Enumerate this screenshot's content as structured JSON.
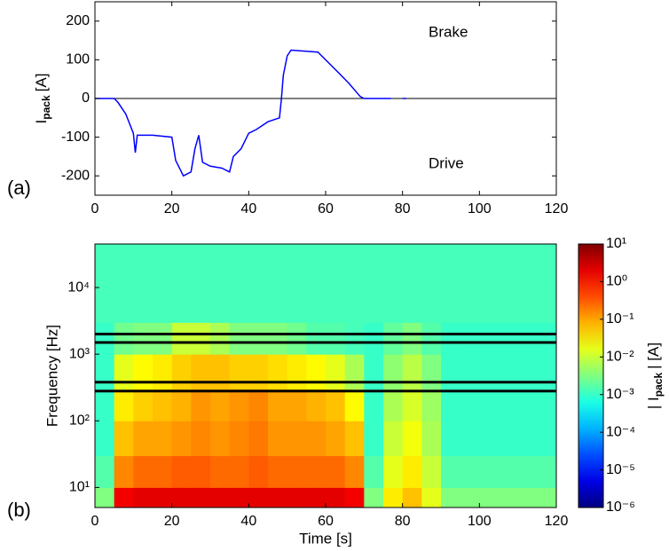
{
  "chart_data": [
    {
      "type": "line",
      "panel_label": "(a)",
      "ylabel": [
        "I",
        "pack",
        "[A]"
      ],
      "annotations": [
        "Brake",
        "Drive"
      ],
      "xlim": [
        0,
        120
      ],
      "xticks": [
        0,
        20,
        40,
        60,
        80,
        100,
        120
      ],
      "ylim": [
        -250,
        250
      ],
      "yticks": [
        -200,
        -100,
        0,
        100,
        200
      ],
      "hline": 0,
      "series": [
        {
          "color": "#0000ff",
          "x": [
            0,
            5,
            6,
            8,
            10,
            10.5,
            11,
            15,
            20,
            21,
            23,
            25,
            26,
            27,
            28,
            30,
            33,
            35,
            36,
            38,
            40,
            42,
            45,
            48,
            48.5,
            49,
            50,
            51,
            58,
            62,
            66,
            69,
            70,
            77,
            77.3,
            80,
            81,
            81.5,
            88
          ],
          "values": [
            0,
            0,
            -10,
            -40,
            -90,
            -140,
            -95,
            -95,
            -100,
            -160,
            -200,
            -190,
            -130,
            -95,
            -165,
            -175,
            -180,
            -190,
            -150,
            -130,
            -90,
            -80,
            -60,
            -50,
            0,
            60,
            110,
            125,
            120,
            80,
            40,
            5,
            0,
            0,
            null,
            0,
            0,
            null,
            0
          ]
        }
      ]
    },
    {
      "type": "heatmap",
      "panel_label": "(b)",
      "xlabel": "Time [s]",
      "ylabel": "Frequency [Hz]",
      "clabel": [
        "| I",
        "pack",
        "| [A]"
      ],
      "colormap": "jet",
      "yscale": "log",
      "xlim": [
        0,
        120
      ],
      "xticks": [
        0,
        20,
        40,
        60,
        80,
        100,
        120
      ],
      "ylim": [
        5,
        45000
      ],
      "yticks": [
        {
          "value": 10,
          "label": "10¹"
        },
        {
          "value": 100,
          "label": "10²"
        },
        {
          "value": 1000,
          "label": "10³"
        },
        {
          "value": 10000,
          "label": "10⁴"
        }
      ],
      "clim": [
        1e-06,
        10
      ],
      "cticks": [
        {
          "value": 1e-06,
          "label": "10⁻⁶"
        },
        {
          "value": 1e-05,
          "label": "10⁻⁵"
        },
        {
          "value": 0.0001,
          "label": "10⁻⁴"
        },
        {
          "value": 0.001,
          "label": "10⁻³"
        },
        {
          "value": 0.01,
          "label": "10⁻²"
        },
        {
          "value": 0.1,
          "label": "10⁻¹"
        },
        {
          "value": 1,
          "label": "10⁰"
        },
        {
          "value": 10,
          "label": "10¹"
        }
      ],
      "hlines": [
        2000,
        1500,
        380,
        280
      ],
      "x_edges": [
        0,
        5,
        10,
        15,
        20,
        25,
        30,
        35,
        40,
        45,
        50,
        55,
        60,
        65,
        70,
        75,
        80,
        85,
        90,
        95,
        100,
        105,
        110,
        115,
        120
      ],
      "y_edges": [
        5,
        10,
        30,
        100,
        300,
        1000,
        3000,
        10000,
        45000
      ],
      "z_log10": [
        [
          -2.5,
          0.2,
          0.3,
          0.3,
          0.3,
          0.3,
          0.3,
          0.3,
          0.3,
          0.3,
          0.3,
          0.3,
          0.3,
          0.2,
          -2.5,
          -1.5,
          -1.2,
          -1.8,
          -2.5,
          -2.5,
          -2.5,
          -2.5,
          -2.5,
          -2.5
        ],
        [
          -2.8,
          -0.8,
          -0.6,
          -0.6,
          -0.5,
          -0.5,
          -0.6,
          -0.6,
          -0.5,
          -0.6,
          -0.6,
          -0.6,
          -0.6,
          -0.8,
          -2.8,
          -1.8,
          -1.5,
          -2,
          -2.8,
          -2.8,
          -2.8,
          -2.8,
          -2.8,
          -2.8
        ],
        [
          -3,
          -1.2,
          -1,
          -1,
          -0.9,
          -0.8,
          -0.9,
          -0.8,
          -0.7,
          -0.9,
          -0.9,
          -0.9,
          -1,
          -1.2,
          -3,
          -2,
          -1.7,
          -2.2,
          -3,
          -3,
          -3,
          -3,
          -3,
          -3
        ],
        [
          -3,
          -1.5,
          -1.3,
          -1.2,
          -1.1,
          -0.9,
          -1,
          -0.9,
          -0.8,
          -1,
          -1,
          -1.1,
          -1.2,
          -1.6,
          -3,
          -2.2,
          -1.9,
          -2.3,
          -3,
          -3,
          -3,
          -3,
          -3,
          -3
        ],
        [
          -3,
          -1.8,
          -1.6,
          -1.5,
          -1.3,
          -1.2,
          -1.2,
          -1.3,
          -1.3,
          -1.4,
          -1.5,
          -1.6,
          -1.8,
          -2.2,
          -3,
          -2.4,
          -2.1,
          -2.5,
          -3,
          -3,
          -3,
          -3,
          -3,
          -3
        ],
        [
          -3,
          -2.6,
          -2.5,
          -2.5,
          -2,
          -2,
          -2.2,
          -2.5,
          -2.5,
          -2.5,
          -2.6,
          -2.8,
          -2.8,
          -2.9,
          -3,
          -2.7,
          -2.5,
          -2.8,
          -3,
          -3,
          -3,
          -3,
          -3,
          -3
        ],
        [
          -2.9,
          -2.9,
          -2.9,
          -2.9,
          -2.9,
          -2.9,
          -2.9,
          -2.9,
          -2.9,
          -2.9,
          -2.9,
          -2.9,
          -2.9,
          -2.9,
          -2.9,
          -2.9,
          -2.9,
          -2.9,
          -2.9,
          -2.9,
          -2.9,
          -2.9,
          -2.9,
          -2.9
        ],
        [
          -2.9,
          -2.9,
          -2.9,
          -2.9,
          -2.9,
          -2.9,
          -2.9,
          -2.9,
          -2.9,
          -2.9,
          -2.9,
          -2.9,
          -2.9,
          -2.9,
          -2.9,
          -2.9,
          -2.9,
          -2.9,
          -2.9,
          -2.9,
          -2.9,
          -2.9,
          -2.9,
          -2.9
        ]
      ]
    }
  ]
}
